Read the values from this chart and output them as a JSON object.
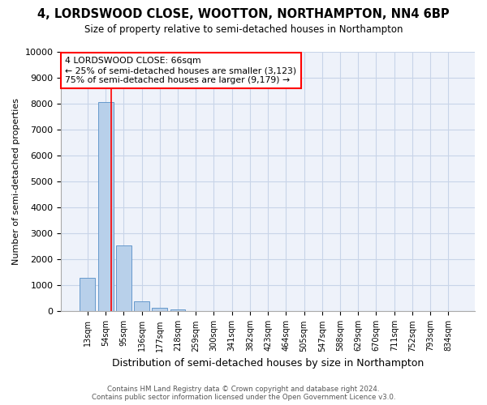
{
  "title": "4, LORDSWOOD CLOSE, WOOTTON, NORTHAMPTON, NN4 6BP",
  "subtitle": "Size of property relative to semi-detached houses in Northampton",
  "xlabel": "Distribution of semi-detached houses by size in Northampton",
  "ylabel": "Number of semi-detached properties",
  "bar_labels": [
    "13sqm",
    "54sqm",
    "95sqm",
    "136sqm",
    "177sqm",
    "218sqm",
    "259sqm",
    "300sqm",
    "341sqm",
    "382sqm",
    "423sqm",
    "464sqm",
    "505sqm",
    "547sqm",
    "588sqm",
    "629sqm",
    "670sqm",
    "711sqm",
    "752sqm",
    "793sqm",
    "834sqm"
  ],
  "bar_values": [
    1300,
    8050,
    2550,
    380,
    130,
    80,
    0,
    0,
    0,
    0,
    0,
    0,
    0,
    0,
    0,
    0,
    0,
    0,
    0,
    0,
    0
  ],
  "bar_color": "#b8d0ea",
  "bar_edge_color": "#6699cc",
  "property_line_x": 1.3,
  "annotation_title": "4 LORDSWOOD CLOSE: 66sqm",
  "annotation_line1": "← 25% of semi-detached houses are smaller (3,123)",
  "annotation_line2": "75% of semi-detached houses are larger (9,179) →",
  "ylim": [
    0,
    10000
  ],
  "yticks": [
    0,
    1000,
    2000,
    3000,
    4000,
    5000,
    6000,
    7000,
    8000,
    9000,
    10000
  ],
  "footer_line1": "Contains HM Land Registry data © Crown copyright and database right 2024.",
  "footer_line2": "Contains public sector information licensed under the Open Government Licence v3.0.",
  "background_color": "#ffffff",
  "plot_bg_color": "#eef2fa",
  "grid_color": "#c8d4e8"
}
